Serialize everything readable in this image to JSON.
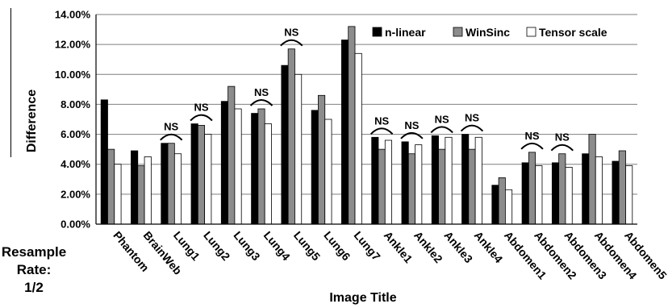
{
  "side_note": {
    "line1": "Resample",
    "line2": "Rate:",
    "line3": "1/2"
  },
  "chart_data": {
    "type": "bar",
    "title": "",
    "xlabel": "Image Title",
    "ylabel": "Difference",
    "ylim": [
      0,
      14
    ],
    "y_ticks": [
      "0.00%",
      "2.00%",
      "4.00%",
      "6.00%",
      "8.00%",
      "10.00%",
      "12.00%",
      "14.00%"
    ],
    "grid": "horizontal",
    "legend_position": "top-right",
    "categories": [
      "Phantom",
      "BrainWeb",
      "Lung1",
      "Lung2",
      "Lung3",
      "Lung4",
      "Lung5",
      "Lung6",
      "Lung7",
      "Ankle1",
      "Ankle2",
      "Ankle3",
      "Ankle4",
      "Abdomen1",
      "Abdomen2",
      "Abdomen3",
      "Abdomen4",
      "Abdomen5"
    ],
    "series": [
      {
        "name": "n-linear",
        "color": "#000000",
        "values": [
          8.3,
          4.9,
          5.4,
          6.7,
          8.2,
          7.4,
          10.6,
          7.6,
          12.3,
          5.8,
          5.5,
          5.9,
          6.0,
          2.6,
          4.1,
          4.1,
          4.7,
          4.2
        ]
      },
      {
        "name": "WinSinc",
        "color": "#8c8c8c",
        "values": [
          5.0,
          3.9,
          5.4,
          6.6,
          9.2,
          7.7,
          11.7,
          8.6,
          13.2,
          5.0,
          4.7,
          5.0,
          5.0,
          3.1,
          4.8,
          4.7,
          6.0,
          4.9
        ]
      },
      {
        "name": "Tensor scale",
        "color": "#ffffff",
        "values": [
          4.0,
          4.5,
          4.7,
          6.0,
          7.7,
          6.7,
          10.0,
          7.0,
          11.4,
          5.6,
          5.3,
          5.8,
          5.8,
          2.3,
          3.9,
          3.8,
          4.5,
          3.9
        ]
      }
    ],
    "annotations": [
      {
        "text": "NS",
        "category": "Lung1"
      },
      {
        "text": "NS",
        "category": "Lung2"
      },
      {
        "text": "NS",
        "category": "Lung4"
      },
      {
        "text": "NS",
        "category": "Lung5"
      },
      {
        "text": "NS",
        "category": "Ankle1"
      },
      {
        "text": "NS",
        "category": "Ankle2"
      },
      {
        "text": "NS",
        "category": "Ankle3"
      },
      {
        "text": "NS",
        "category": "Ankle4"
      },
      {
        "text": "NS",
        "category": "Abdomen2"
      },
      {
        "text": "NS",
        "category": "Abdomen3"
      }
    ]
  }
}
